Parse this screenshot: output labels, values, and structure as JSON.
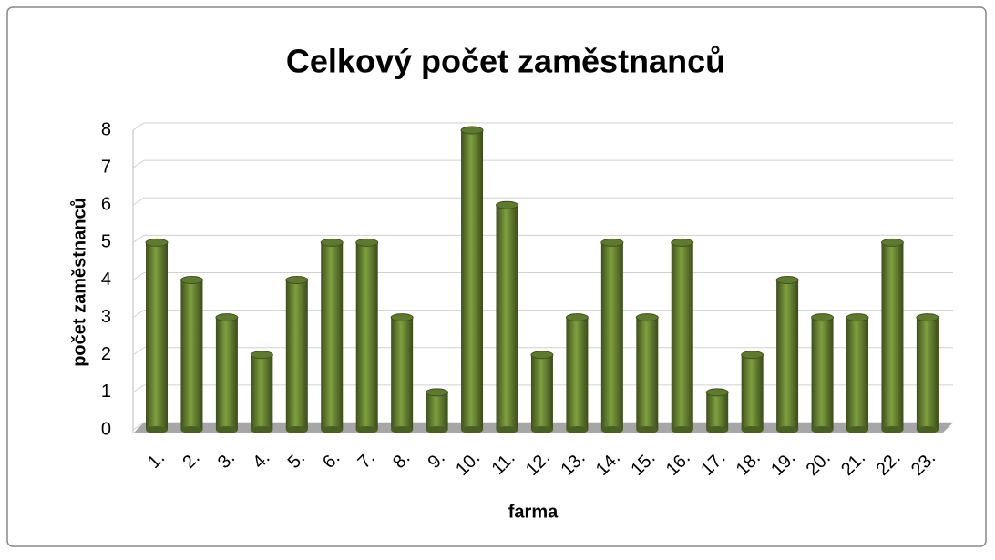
{
  "chart_data": {
    "type": "bar",
    "title": "Celkový počet zaměstnanců",
    "x_label": "farma",
    "y_label": "počet zaměstnanců",
    "categories": [
      "1.",
      "2.",
      "3.",
      "4.",
      "5.",
      "6.",
      "7.",
      "8.",
      "9.",
      "10.",
      "11.",
      "12.",
      "13.",
      "14.",
      "15.",
      "16.",
      "17.",
      "18.",
      "19.",
      "20.",
      "21.",
      "22.",
      "23."
    ],
    "values": [
      5,
      4,
      3,
      2,
      4,
      5,
      5,
      3,
      1,
      8,
      6,
      2,
      3,
      5,
      3,
      5,
      1,
      2,
      4,
      3,
      3,
      5,
      3
    ],
    "color": "#5f7a2e",
    "ylim": [
      0,
      8
    ],
    "yticks": [
      0,
      1,
      2,
      3,
      4,
      5,
      6,
      7,
      8
    ],
    "grid": true
  }
}
